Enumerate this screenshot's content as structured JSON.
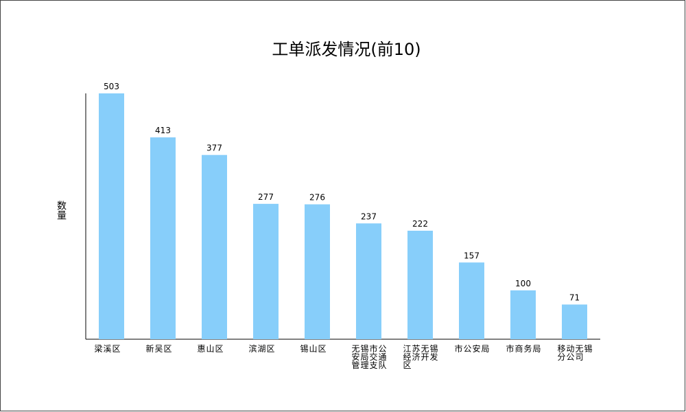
{
  "chart_data": {
    "type": "bar",
    "title": "工单派发情况(前10)",
    "y_label": "数量",
    "categories": [
      "梁溪区",
      "新吴区",
      "惠山区",
      "滨湖区",
      "锡山区",
      "无锡市公安局交通管理支队",
      "江苏无锡经济开发区",
      "市公安局",
      "市商务局",
      "移动无锡分公司"
    ],
    "values": [
      503,
      413,
      377,
      277,
      276,
      237,
      222,
      157,
      100,
      71
    ],
    "color": "#87cefa",
    "ylim": [
      0,
      503
    ]
  }
}
